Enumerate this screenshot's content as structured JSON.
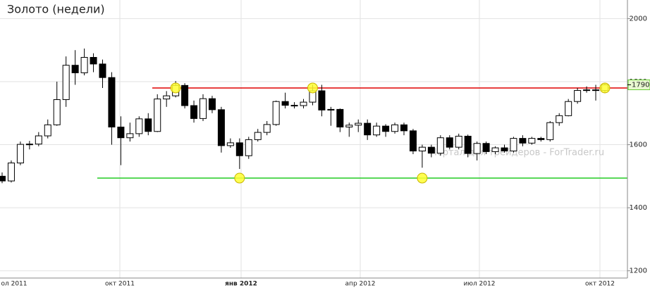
{
  "chart_data": {
    "type": "candlestick",
    "title": "Золото (недели)",
    "watermark": "Портал для трейдеров - ForTrader.ru",
    "xtick_labels": [
      "ол 2011",
      "окт 2011",
      "янв 2012",
      "апр 2012",
      "июл 2012",
      "окт 2012"
    ],
    "ylim": [
      1177,
      2059
    ],
    "yticks": [
      1200,
      1400,
      1600,
      1800,
      2000
    ],
    "grid": true,
    "up_color": "#ffffff",
    "down_color": "#000000",
    "levels": [
      {
        "value": 1780,
        "color": "#e00000"
      },
      {
        "value": 1494,
        "color": "#22cc22"
      }
    ],
    "open": [
      1500,
      1485,
      1542,
      1601,
      1602,
      1628,
      1663,
      1743,
      1852,
      1828,
      1877,
      1856,
      1813,
      1656,
      1622,
      1635,
      1682,
      1642,
      1745,
      1755,
      1788,
      1724,
      1683,
      1746,
      1711,
      1597,
      1606,
      1565,
      1616,
      1639,
      1664,
      1737,
      1725,
      1724,
      1735,
      1771,
      1710,
      1712,
      1656,
      1662,
      1668,
      1631,
      1659,
      1642,
      1663,
      1644,
      1580,
      1592,
      1573,
      1622,
      1592,
      1627,
      1572,
      1604,
      1578,
      1590,
      1580,
      1620,
      1605,
      1620,
      1616,
      1670,
      1692,
      1737,
      1772,
      1774,
      1772
    ],
    "high": [
      1512,
      1550,
      1610,
      1612,
      1640,
      1680,
      1800,
      1880,
      1900,
      1905,
      1890,
      1870,
      1830,
      1690,
      1670,
      1690,
      1700,
      1760,
      1770,
      1802,
      1795,
      1740,
      1760,
      1755,
      1720,
      1620,
      1620,
      1625,
      1650,
      1675,
      1740,
      1765,
      1735,
      1745,
      1790,
      1790,
      1720,
      1715,
      1670,
      1680,
      1680,
      1670,
      1665,
      1670,
      1670,
      1650,
      1600,
      1600,
      1630,
      1630,
      1635,
      1632,
      1610,
      1610,
      1595,
      1600,
      1625,
      1630,
      1625,
      1625,
      1675,
      1700,
      1745,
      1780,
      1785,
      1790,
      1795
    ],
    "low": [
      1478,
      1480,
      1535,
      1585,
      1595,
      1620,
      1660,
      1720,
      1790,
      1820,
      1830,
      1780,
      1600,
      1535,
      1610,
      1625,
      1630,
      1640,
      1720,
      1750,
      1715,
      1670,
      1675,
      1700,
      1575,
      1590,
      1523,
      1555,
      1610,
      1630,
      1660,
      1715,
      1715,
      1715,
      1725,
      1690,
      1660,
      1640,
      1625,
      1640,
      1615,
      1625,
      1625,
      1635,
      1630,
      1570,
      1527,
      1560,
      1565,
      1585,
      1585,
      1560,
      1550,
      1570,
      1570,
      1575,
      1575,
      1595,
      1600,
      1610,
      1610,
      1660,
      1690,
      1730,
      1765,
      1740,
      1765
    ],
    "close": [
      1485,
      1542,
      1601,
      1602,
      1628,
      1663,
      1743,
      1852,
      1828,
      1877,
      1856,
      1813,
      1656,
      1622,
      1635,
      1682,
      1642,
      1745,
      1755,
      1788,
      1724,
      1683,
      1746,
      1711,
      1597,
      1606,
      1565,
      1616,
      1639,
      1664,
      1737,
      1725,
      1724,
      1735,
      1771,
      1710,
      1712,
      1656,
      1662,
      1668,
      1631,
      1659,
      1642,
      1663,
      1644,
      1580,
      1592,
      1573,
      1622,
      1592,
      1627,
      1572,
      1604,
      1578,
      1590,
      1580,
      1620,
      1605,
      1620,
      1616,
      1670,
      1692,
      1737,
      1772,
      1774,
      1772,
      1790
    ]
  }
}
